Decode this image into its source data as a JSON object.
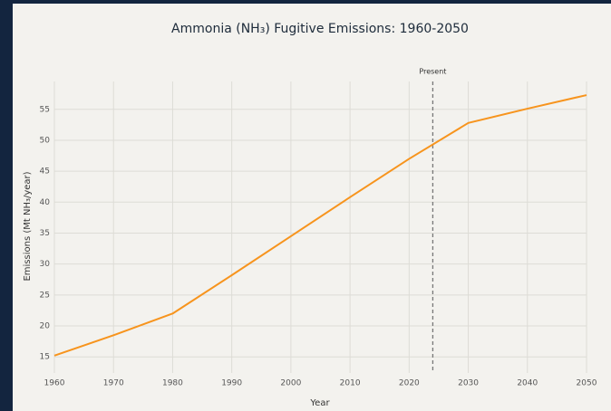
{
  "chart_data": {
    "type": "line",
    "title": "Ammonia (NH₃) Fugitive Emissions: 1960-2050",
    "x_label": "Year",
    "y_label": "Emissions (Mt NH₃/year)",
    "x": [
      1960,
      1970,
      1980,
      1990,
      2000,
      2010,
      2020,
      2030,
      2040,
      2050
    ],
    "series": [
      {
        "name": "Ammonia emissions",
        "color": "#f7941d",
        "values": [
          15.2,
          18.5,
          22,
          28.2,
          34.5,
          40.8,
          47,
          52.8,
          55.1,
          57.3
        ]
      }
    ],
    "xlim": [
      1960,
      2050
    ],
    "xticks": [
      1960,
      1970,
      1980,
      1990,
      2000,
      2010,
      2020,
      2030,
      2040,
      2050
    ],
    "ylim": [
      12.4,
      59.5
    ],
    "yticks": [
      15,
      20,
      25,
      30,
      35,
      40,
      45,
      50,
      55
    ],
    "grid": true,
    "annotations": [
      {
        "x": 2024,
        "text": "Present"
      }
    ]
  }
}
